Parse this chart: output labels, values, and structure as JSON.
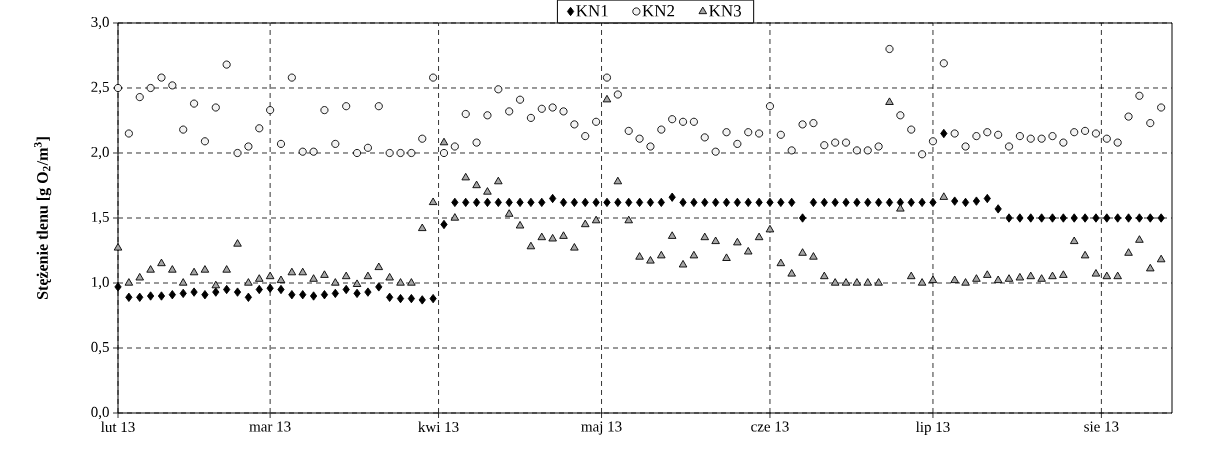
{
  "chart_data": {
    "type": "scatter",
    "ylabel": "Stężenie tlenu [g O$_{2}$/m$^{3}$]",
    "x": [
      "2013-02-01",
      "2013-02-03",
      "2013-02-05",
      "2013-02-07",
      "2013-02-09",
      "2013-02-11",
      "2013-02-13",
      "2013-02-15",
      "2013-02-17",
      "2013-02-19",
      "2013-02-21",
      "2013-02-23",
      "2013-02-25",
      "2013-02-27",
      "2013-03-01",
      "2013-03-03",
      "2013-03-05",
      "2013-03-07",
      "2013-03-09",
      "2013-03-11",
      "2013-03-13",
      "2013-03-15",
      "2013-03-17",
      "2013-03-19",
      "2013-03-21",
      "2013-03-23",
      "2013-03-25",
      "2013-03-27",
      "2013-03-29",
      "2013-03-31",
      "2013-04-02",
      "2013-04-04",
      "2013-04-06",
      "2013-04-08",
      "2013-04-10",
      "2013-04-12",
      "2013-04-14",
      "2013-04-16",
      "2013-04-18",
      "2013-04-20",
      "2013-04-22",
      "2013-04-24",
      "2013-04-26",
      "2013-04-28",
      "2013-04-30",
      "2013-05-02",
      "2013-05-04",
      "2013-05-06",
      "2013-05-08",
      "2013-05-10",
      "2013-05-12",
      "2013-05-14",
      "2013-05-16",
      "2013-05-18",
      "2013-05-20",
      "2013-05-22",
      "2013-05-24",
      "2013-05-26",
      "2013-05-28",
      "2013-05-30",
      "2013-06-01",
      "2013-06-03",
      "2013-06-05",
      "2013-06-07",
      "2013-06-09",
      "2013-06-11",
      "2013-06-13",
      "2013-06-15",
      "2013-06-17",
      "2013-06-19",
      "2013-06-21",
      "2013-06-23",
      "2013-06-25",
      "2013-06-27",
      "2013-06-29",
      "2013-07-01",
      "2013-07-03",
      "2013-07-05",
      "2013-07-07",
      "2013-07-09",
      "2013-07-11",
      "2013-07-13",
      "2013-07-15",
      "2013-07-17",
      "2013-07-19",
      "2013-07-21",
      "2013-07-23",
      "2013-07-25",
      "2013-07-27",
      "2013-07-29",
      "2013-07-31",
      "2013-08-02",
      "2013-08-04",
      "2013-08-06",
      "2013-08-08",
      "2013-08-10",
      "2013-08-12"
    ],
    "series": [
      {
        "name": "KN1",
        "color": "#000000",
        "marker": "diamond",
        "values": [
          0.97,
          0.89,
          0.89,
          0.9,
          0.9,
          0.91,
          0.92,
          0.93,
          0.91,
          0.93,
          0.95,
          0.93,
          0.89,
          0.95,
          0.96,
          0.95,
          0.91,
          0.91,
          0.9,
          0.91,
          0.92,
          0.95,
          0.92,
          0.93,
          0.97,
          0.89,
          0.88,
          0.88,
          0.87,
          0.88,
          1.45,
          1.62,
          1.62,
          1.62,
          1.62,
          1.62,
          1.62,
          1.62,
          1.62,
          1.62,
          1.65,
          1.62,
          1.62,
          1.62,
          1.62,
          1.62,
          1.62,
          1.62,
          1.62,
          1.62,
          1.62,
          1.66,
          1.62,
          1.62,
          1.62,
          1.62,
          1.62,
          1.62,
          1.62,
          1.62,
          1.62,
          1.62,
          1.62,
          1.5,
          1.62,
          1.62,
          1.62,
          1.62,
          1.62,
          1.62,
          1.62,
          1.62,
          1.62,
          1.62,
          1.62,
          1.62,
          2.15,
          1.63,
          1.62,
          1.63,
          1.65,
          1.57,
          1.5,
          1.5,
          1.5,
          1.5,
          1.5,
          1.5,
          1.5,
          1.5,
          1.5,
          1.5,
          1.5,
          1.5,
          1.5,
          1.5,
          1.5
        ]
      },
      {
        "name": "KN2",
        "color": "#f2f2f2",
        "marker": "circle",
        "values": [
          2.5,
          2.15,
          2.43,
          2.5,
          2.58,
          2.52,
          2.18,
          2.38,
          2.09,
          2.35,
          2.68,
          2.0,
          2.05,
          2.19,
          2.33,
          2.07,
          2.58,
          2.01,
          2.01,
          2.33,
          2.07,
          2.36,
          2.0,
          2.04,
          2.36,
          2.0,
          2.0,
          2.0,
          2.11,
          2.58,
          2.0,
          2.05,
          2.3,
          2.08,
          2.29,
          2.49,
          2.32,
          2.41,
          2.27,
          2.34,
          2.35,
          2.32,
          2.22,
          2.13,
          2.24,
          2.58,
          2.45,
          2.17,
          2.11,
          2.05,
          2.18,
          2.26,
          2.24,
          2.24,
          2.12,
          2.01,
          2.16,
          2.07,
          2.16,
          2.15,
          2.36,
          2.14,
          2.02,
          2.22,
          2.23,
          2.06,
          2.08,
          2.08,
          2.02,
          2.02,
          2.05,
          2.8,
          2.29,
          2.18,
          1.99,
          2.09,
          2.69,
          2.15,
          2.05,
          2.13,
          2.16,
          2.14,
          2.05,
          2.13,
          2.11,
          2.11,
          2.13,
          2.08,
          2.16,
          2.17,
          2.15,
          2.11,
          2.08,
          2.28,
          2.44,
          2.23,
          2.35
        ]
      },
      {
        "name": "KN3",
        "color": "#a6a6a6",
        "marker": "triangle",
        "values": [
          1.27,
          1.0,
          1.04,
          1.1,
          1.15,
          1.1,
          1.0,
          1.08,
          1.1,
          0.98,
          1.1,
          1.3,
          1.0,
          1.03,
          1.05,
          1.02,
          1.08,
          1.08,
          1.03,
          1.06,
          1.0,
          1.05,
          0.99,
          1.05,
          1.12,
          1.04,
          1.0,
          1.0,
          1.42,
          1.62,
          2.08,
          1.5,
          1.81,
          1.75,
          1.7,
          1.78,
          1.53,
          1.44,
          1.28,
          1.35,
          1.34,
          1.36,
          1.27,
          1.45,
          1.48,
          2.41,
          1.78,
          1.48,
          1.2,
          1.17,
          1.21,
          1.36,
          1.14,
          1.21,
          1.35,
          1.32,
          1.19,
          1.31,
          1.24,
          1.35,
          1.41,
          1.15,
          1.07,
          1.23,
          1.2,
          1.05,
          1.0,
          1.0,
          1.0,
          1.0,
          1.0,
          2.39,
          1.57,
          1.05,
          1.0,
          1.02,
          1.66,
          1.02,
          1.0,
          1.03,
          1.06,
          1.02,
          1.03,
          1.04,
          1.05,
          1.03,
          1.05,
          1.06,
          1.32,
          1.21,
          1.07,
          1.05,
          1.05,
          1.23,
          1.33,
          1.11,
          1.18
        ]
      }
    ],
    "xlim": [
      "2013-02-01",
      "2013-08-14"
    ],
    "xticks": [
      {
        "value": "2013-02-01",
        "label": "lut 13"
      },
      {
        "value": "2013-03-01",
        "label": "mar 13"
      },
      {
        "value": "2013-04-01",
        "label": "kwi 13"
      },
      {
        "value": "2013-05-01",
        "label": "maj 13"
      },
      {
        "value": "2013-06-01",
        "label": "cze 13"
      },
      {
        "value": "2013-07-01",
        "label": "lip 13"
      },
      {
        "value": "2013-08-01",
        "label": "sie 13"
      }
    ],
    "ylim": [
      0,
      3
    ],
    "yticks": [
      {
        "value": 0,
        "label": "0,0"
      },
      {
        "value": 0.5,
        "label": "0,5"
      },
      {
        "value": 1,
        "label": "1,0"
      },
      {
        "value": 1.5,
        "label": "1,5"
      },
      {
        "value": 2,
        "label": "2,0"
      },
      {
        "value": 2.5,
        "label": "2,5"
      },
      {
        "value": 3,
        "label": "3,0"
      }
    ],
    "grid": true,
    "legend": "top"
  }
}
